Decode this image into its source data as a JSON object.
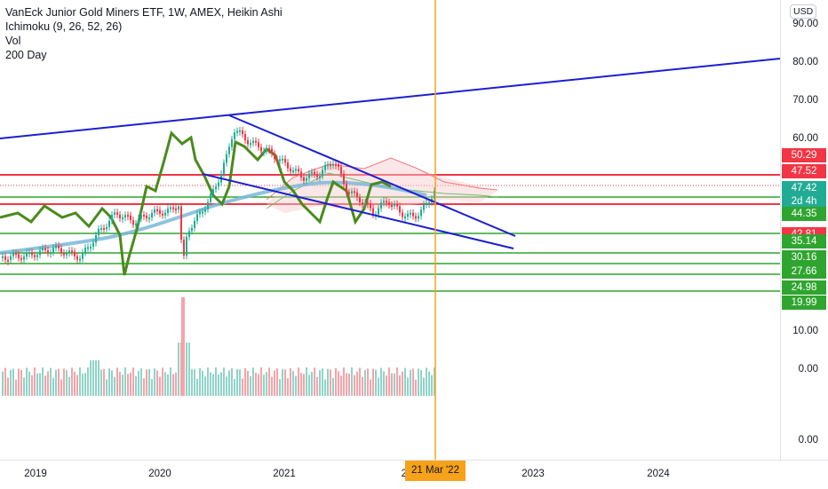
{
  "legend": {
    "title": "VanEck Junior Gold Miners ETF, 1W, AMEX, Heikin Ashi",
    "ichimoku": "Ichimoku (9, 26, 52, 26)",
    "vol": "Vol",
    "ma": "200 Day"
  },
  "currency": "USD",
  "price_axis_ticks": [
    "90.00",
    "80.00",
    "70.00",
    "60.00",
    "10.00",
    "0.00",
    "0.00"
  ],
  "price_tags": [
    {
      "label": "50.29",
      "color": "#f23645"
    },
    {
      "label": "47.52",
      "color": "#f23645"
    },
    {
      "label": "47.42",
      "color": "#22ab94"
    },
    {
      "label": "2d 4h",
      "color": "#22ab94"
    },
    {
      "label": "44.35",
      "color": "#2fa52f"
    },
    {
      "label": "42.81",
      "color": "#f23645"
    },
    {
      "label": "35.14",
      "color": "#2fa52f"
    },
    {
      "label": "30.16",
      "color": "#2fa52f"
    },
    {
      "label": "27.66",
      "color": "#2fa52f"
    },
    {
      "label": "24.98",
      "color": "#2fa52f"
    },
    {
      "label": "19.99",
      "color": "#2fa52f"
    }
  ],
  "time_axis": [
    "2019",
    "2020",
    "2021",
    "20",
    "2023",
    "2024"
  ],
  "crosshair_date": "21 Mar '22",
  "colors": {
    "trendline": "#1b1fd1",
    "red_level": "#f23645",
    "green_level": "#2fa52f",
    "crosshair": "#f7a21b",
    "up_candle": "#22ab94",
    "down_candle": "#f23645",
    "thick_line": "#4a8a1c",
    "ma_line": "#7ab8d8"
  }
}
